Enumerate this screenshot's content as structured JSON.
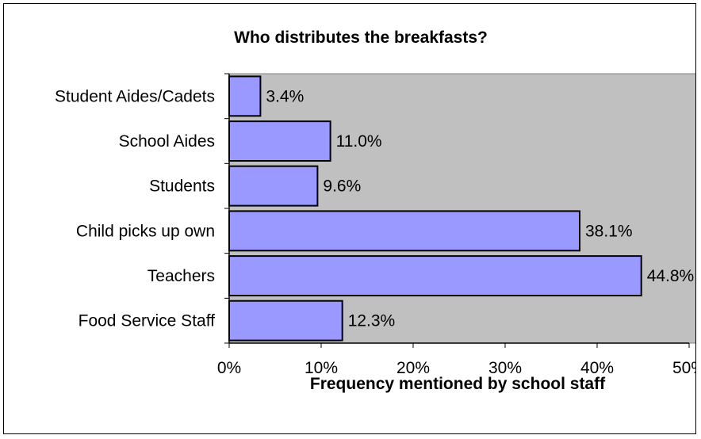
{
  "chart_data": {
    "type": "bar",
    "orientation": "horizontal",
    "title": "Who distributes the breakfasts?",
    "xlabel": "Frequency mentioned by school staff",
    "ylabel": "",
    "categories": [
      "Student Aides/Cadets",
      "School Aides",
      "Students",
      "Child picks up own",
      "Teachers",
      "Food Service Staff"
    ],
    "values": [
      3.4,
      11.0,
      9.6,
      38.1,
      44.8,
      12.3
    ],
    "data_labels": [
      "3.4%",
      "11.0%",
      "9.6%",
      "38.1%",
      "44.8%",
      "12.3%"
    ],
    "xlim": [
      0,
      50
    ],
    "ticks": [
      0,
      10,
      20,
      30,
      40,
      50
    ],
    "tick_labels": [
      "0%",
      "10%",
      "20%",
      "30%",
      "40%",
      "50%"
    ],
    "grid": false,
    "legend": "none",
    "colors": {
      "bar_fill": "#9999ff",
      "bar_stroke": "#000000",
      "plot_background": "#c0c0c0"
    }
  }
}
